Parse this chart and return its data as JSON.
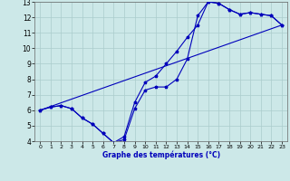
{
  "xlabel": "Graphe des températures (°C)",
  "xlim": [
    -0.5,
    23.5
  ],
  "ylim": [
    4,
    13
  ],
  "xticks": [
    0,
    1,
    2,
    3,
    4,
    5,
    6,
    7,
    8,
    9,
    10,
    11,
    12,
    13,
    14,
    15,
    16,
    17,
    18,
    19,
    20,
    21,
    22,
    23
  ],
  "yticks": [
    4,
    5,
    6,
    7,
    8,
    9,
    10,
    11,
    12,
    13
  ],
  "background_color": "#cce8e8",
  "grid_color": "#aacccc",
  "line_color": "#0000bb",
  "line1_x": [
    0,
    1,
    2,
    3,
    4,
    5,
    6,
    7,
    8,
    9,
    10,
    11,
    12,
    13,
    14,
    15,
    16,
    17,
    18,
    19,
    20,
    21,
    22,
    23
  ],
  "line1_y": [
    6.0,
    6.2,
    6.3,
    6.1,
    5.5,
    5.1,
    4.5,
    3.9,
    4.1,
    6.1,
    7.3,
    7.5,
    7.5,
    8.0,
    9.3,
    12.1,
    13.0,
    12.9,
    12.5,
    12.2,
    12.3,
    12.2,
    12.1,
    11.5
  ],
  "line2_x": [
    0,
    1,
    2,
    3,
    4,
    5,
    6,
    7,
    8,
    9,
    10,
    11,
    12,
    13,
    14,
    15,
    16,
    17,
    18,
    19,
    20,
    21,
    22,
    23
  ],
  "line2_y": [
    6.0,
    6.2,
    6.3,
    6.1,
    5.5,
    5.1,
    4.5,
    3.9,
    4.3,
    6.5,
    7.8,
    8.2,
    9.0,
    9.8,
    10.7,
    11.5,
    13.0,
    12.9,
    12.5,
    12.2,
    12.3,
    12.2,
    12.1,
    11.5
  ],
  "line3_x": [
    0,
    23
  ],
  "line3_y": [
    6.0,
    11.5
  ]
}
